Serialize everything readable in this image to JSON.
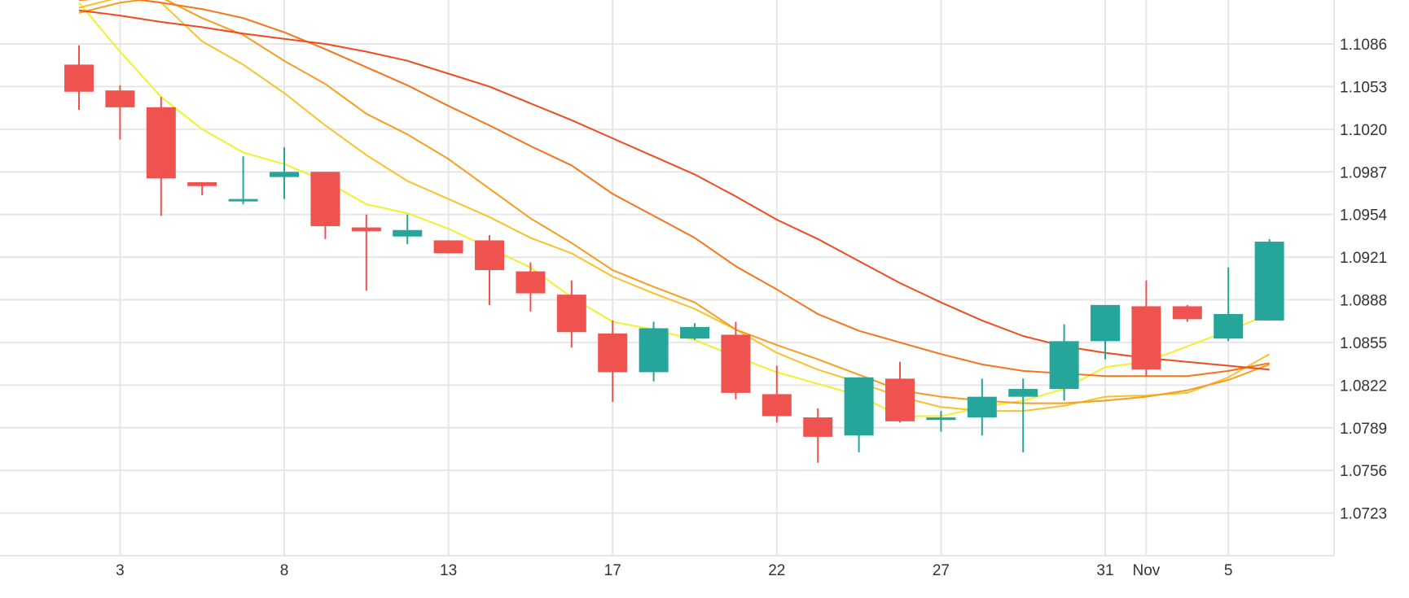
{
  "chart_data": {
    "type": "candlestick",
    "title": "",
    "xlabel": "",
    "ylabel": "",
    "grid": true,
    "ylim": [
      1.069,
      1.112
    ],
    "y_ticks": [
      "1.1086",
      "1.1053",
      "1.1020",
      "1.0987",
      "1.0954",
      "1.0921",
      "1.0888",
      "1.0855",
      "1.0822",
      "1.0789",
      "1.0756",
      "1.0723"
    ],
    "x_ticks": [
      {
        "label": "3",
        "index": 1
      },
      {
        "label": "8",
        "index": 5
      },
      {
        "label": "13",
        "index": 9
      },
      {
        "label": "17",
        "index": 13
      },
      {
        "label": "22",
        "index": 17
      },
      {
        "label": "27",
        "index": 21
      },
      {
        "label": "31",
        "index": 25
      },
      {
        "label": "Nov",
        "index": 26
      },
      {
        "label": "5",
        "index": 28
      }
    ],
    "up_color": "#26a69a",
    "down_color": "#ef5350",
    "candles": [
      {
        "open": 1.107,
        "high": 1.1085,
        "low": 1.1035,
        "close": 1.1049
      },
      {
        "open": 1.105,
        "high": 1.1054,
        "low": 1.1012,
        "close": 1.1037
      },
      {
        "open": 1.1037,
        "high": 1.1045,
        "low": 1.0953,
        "close": 1.0982
      },
      {
        "open": 1.0979,
        "high": 1.0979,
        "low": 1.0969,
        "close": 1.0976
      },
      {
        "open": 1.0966,
        "high": 1.0999,
        "low": 1.0962,
        "close": 1.0966
      },
      {
        "open": 1.0983,
        "high": 1.1006,
        "low": 1.0966,
        "close": 1.0987
      },
      {
        "open": 1.0987,
        "high": 1.0987,
        "low": 1.0935,
        "close": 1.0945
      },
      {
        "open": 1.0944,
        "high": 1.0954,
        "low": 1.0895,
        "close": 1.0941
      },
      {
        "open": 1.0937,
        "high": 1.0954,
        "low": 1.0931,
        "close": 1.0942
      },
      {
        "open": 1.0934,
        "high": 1.0934,
        "low": 1.0924,
        "close": 1.0924
      },
      {
        "open": 1.0934,
        "high": 1.0938,
        "low": 1.0884,
        "close": 1.0911
      },
      {
        "open": 1.091,
        "high": 1.0917,
        "low": 1.0879,
        "close": 1.0893
      },
      {
        "open": 1.0892,
        "high": 1.0903,
        "low": 1.0851,
        "close": 1.0863
      },
      {
        "open": 1.0862,
        "high": 1.0872,
        "low": 1.0809,
        "close": 1.0832
      },
      {
        "open": 1.0832,
        "high": 1.0871,
        "low": 1.0825,
        "close": 1.0866
      },
      {
        "open": 1.0858,
        "high": 1.087,
        "low": 1.0857,
        "close": 1.0867
      },
      {
        "open": 1.0861,
        "high": 1.0871,
        "low": 1.0811,
        "close": 1.0816
      },
      {
        "open": 1.0815,
        "high": 1.0837,
        "low": 1.0793,
        "close": 1.0798
      },
      {
        "open": 1.0797,
        "high": 1.0804,
        "low": 1.0762,
        "close": 1.0782
      },
      {
        "open": 1.0783,
        "high": 1.0828,
        "low": 1.077,
        "close": 1.0828
      },
      {
        "open": 1.0827,
        "high": 1.084,
        "low": 1.0793,
        "close": 1.0794
      },
      {
        "open": 1.0795,
        "high": 1.0802,
        "low": 1.0786,
        "close": 1.0797
      },
      {
        "open": 1.0797,
        "high": 1.0827,
        "low": 1.0783,
        "close": 1.0813
      },
      {
        "open": 1.0813,
        "high": 1.0827,
        "low": 1.077,
        "close": 1.0819
      },
      {
        "open": 1.0819,
        "high": 1.0869,
        "low": 1.081,
        "close": 1.0856
      },
      {
        "open": 1.0856,
        "high": 1.0884,
        "low": 1.0842,
        "close": 1.0884
      },
      {
        "open": 1.0883,
        "high": 1.0903,
        "low": 1.0829,
        "close": 1.0834
      },
      {
        "open": 1.0883,
        "high": 1.0884,
        "low": 1.0871,
        "close": 1.0873
      },
      {
        "open": 1.0858,
        "high": 1.0913,
        "low": 1.0856,
        "close": 1.0877
      },
      {
        "open": 1.0872,
        "high": 1.0935,
        "low": 1.0872,
        "close": 1.0933
      }
    ],
    "series": [
      {
        "color": "#f2f02a",
        "values": [
          1.1118,
          1.108,
          1.1045,
          1.102,
          1.1002,
          1.0993,
          1.098,
          1.0962,
          1.0955,
          1.0943,
          1.0928,
          1.0913,
          1.089,
          1.0871,
          1.0865,
          1.0857,
          1.0844,
          1.0832,
          1.0823,
          1.0814,
          1.0798,
          1.0798,
          1.0805,
          1.081,
          1.0819,
          1.0836,
          1.084,
          1.0852,
          1.0864,
          1.0877
        ]
      },
      {
        "color": "#f7c22a",
        "values": [
          1.1114,
          1.1122,
          1.1118,
          1.1088,
          1.107,
          1.1048,
          1.1023,
          1.1,
          1.098,
          1.0966,
          1.0952,
          1.0936,
          1.0924,
          1.0906,
          1.0893,
          1.0881,
          1.0865,
          1.0847,
          1.0834,
          1.0824,
          1.0813,
          1.0805,
          1.0802,
          1.0802,
          1.0806,
          1.0813,
          1.0814,
          1.0816,
          1.0828,
          1.0846
        ]
      },
      {
        "color": "#f99c1f",
        "values": [
          1.111,
          1.1118,
          1.1122,
          1.1106,
          1.1093,
          1.1073,
          1.1055,
          1.1032,
          1.1016,
          1.0997,
          1.0974,
          1.0951,
          1.0932,
          1.0911,
          1.0898,
          1.0886,
          1.0865,
          1.0853,
          1.0842,
          1.083,
          1.0818,
          1.0813,
          1.081,
          1.0808,
          1.0808,
          1.081,
          1.0813,
          1.0818,
          1.0826,
          1.0838
        ]
      },
      {
        "color": "#f6741a",
        "values": [
          1.112,
          1.1122,
          1.1118,
          1.1113,
          1.1106,
          1.1095,
          1.1082,
          1.1068,
          1.1054,
          1.1038,
          1.1023,
          1.1007,
          1.0992,
          1.097,
          1.0953,
          1.0936,
          1.0914,
          1.0896,
          1.0877,
          1.0864,
          1.0855,
          1.0846,
          1.0838,
          1.0833,
          1.0831,
          1.0829,
          1.0829,
          1.0829,
          1.0833,
          1.0839
        ]
      },
      {
        "color": "#ef4b1e",
        "values": [
          1.1112,
          1.1108,
          1.1103,
          1.1099,
          1.1094,
          1.109,
          1.1086,
          1.108,
          1.1073,
          1.1063,
          1.1053,
          1.104,
          1.1027,
          1.1013,
          1.0999,
          1.0985,
          1.0968,
          1.095,
          1.0935,
          1.0918,
          1.0901,
          1.0886,
          1.0872,
          1.086,
          1.0852,
          1.0847,
          1.0843,
          1.084,
          1.0837,
          1.0834
        ]
      }
    ]
  }
}
